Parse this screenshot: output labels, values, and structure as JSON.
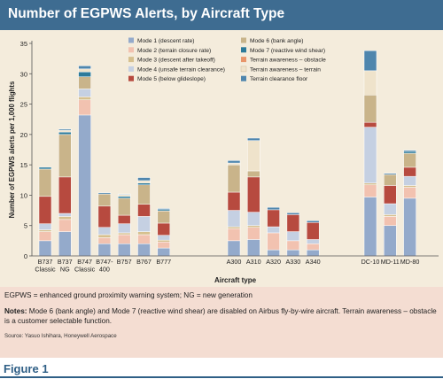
{
  "title": "Number of EGPWS Alerts, by Aircraft Type",
  "chart_data": {
    "type": "bar",
    "stacked": true,
    "title": "Number of EGPWS Alerts, by Aircraft Type",
    "xlabel": "Aircraft type",
    "ylabel": "Number of EGPWS alerts per 1,000 flights",
    "ylim": [
      0,
      35
    ],
    "yticks": [
      0,
      5,
      10,
      15,
      20,
      25,
      30,
      35
    ],
    "grid": false,
    "legend_position": "top-center",
    "groups": [
      [
        "B737 Classic",
        "B737 NG",
        "B747 Classic",
        "B747-400",
        "B757",
        "B767",
        "B777"
      ],
      [
        "A300",
        "A310",
        "A320",
        "A330",
        "A340"
      ],
      [
        "DC-10",
        "MD-11",
        "MD-80"
      ]
    ],
    "categories": [
      "B737 Classic",
      "B737 NG",
      "B747 Classic",
      "B747-400",
      "B757",
      "B767",
      "B777",
      "A300",
      "A310",
      "A320",
      "A330",
      "A340",
      "DC-10",
      "MD-11",
      "MD-80"
    ],
    "category_labels": [
      [
        "B737",
        "Classic"
      ],
      [
        "B737",
        "NG"
      ],
      [
        "B747",
        "Classic"
      ],
      [
        "B747-",
        "400"
      ],
      [
        "B757"
      ],
      [
        "B767"
      ],
      [
        "B777"
      ],
      [
        "A300"
      ],
      [
        "A310"
      ],
      [
        "A320"
      ],
      [
        "A330"
      ],
      [
        "A340"
      ],
      [
        "DC-10"
      ],
      [
        "MD-11"
      ],
      [
        "MD-80"
      ]
    ],
    "series": [
      {
        "name": "Mode 1 (descent rate)",
        "color": "#94aacb",
        "values": [
          2.5,
          4.0,
          23.2,
          2.0,
          2.0,
          2.0,
          1.3,
          2.5,
          2.7,
          1.0,
          1.0,
          1.0,
          9.7,
          5.0,
          9.5
        ]
      },
      {
        "name": "Mode 2 (terrain closure rate)",
        "color": "#f2c2b0",
        "values": [
          1.5,
          2.0,
          2.5,
          1.0,
          1.5,
          1.5,
          1.0,
          2.0,
          2.0,
          2.8,
          1.5,
          1.0,
          2.0,
          1.5,
          1.8
        ]
      },
      {
        "name": "Mode 3 (descent after takeoff)",
        "color": "#d6c08e",
        "values": [
          0.3,
          0.5,
          0.5,
          0.5,
          0.3,
          0.5,
          0.3,
          0.3,
          0.3,
          0.0,
          0.0,
          0.0,
          0.3,
          0.3,
          0.3
        ]
      },
      {
        "name": "Mode 4 (unsafe terrain clearance)",
        "color": "#c5d0e2",
        "values": [
          1.0,
          0.5,
          1.3,
          1.2,
          1.5,
          2.5,
          0.8,
          2.7,
          2.2,
          1.0,
          1.5,
          0.7,
          9.2,
          1.8,
          1.5
        ]
      },
      {
        "name": "Mode 5 (below glideslope)",
        "color": "#b74a3f",
        "values": [
          4.5,
          6.0,
          0.0,
          3.5,
          1.4,
          2.0,
          2.0,
          3.0,
          5.8,
          2.8,
          2.8,
          2.8,
          0.8,
          3.0,
          1.5
        ]
      },
      {
        "name": "Mode 6 (bank angle)",
        "color": "#c9b48a",
        "values": [
          4.5,
          7.0,
          2.0,
          2.0,
          2.8,
          3.2,
          2.0,
          4.5,
          1.0,
          0.0,
          0.0,
          0.0,
          4.5,
          1.8,
          2.3
        ]
      },
      {
        "name": "Mode 7 (reactive wind shear)",
        "color": "#2c7a9a",
        "values": [
          0.3,
          0.4,
          0.8,
          0.0,
          0.3,
          0.3,
          0.2,
          0.0,
          0.0,
          0.0,
          0.0,
          0.0,
          0.0,
          0.0,
          0.3
        ]
      },
      {
        "name": "Terrain awareness – obstacle",
        "color": "#e8956a",
        "values": [
          0.0,
          0.0,
          0.0,
          0.0,
          0.0,
          0.0,
          0.0,
          0.0,
          0.0,
          0.0,
          0.0,
          0.0,
          0.0,
          0.0,
          0.0
        ]
      },
      {
        "name": "Terrain awareness – terrain",
        "color": "#efe3cb",
        "values": [
          0.0,
          0.3,
          0.5,
          0.0,
          0.3,
          0.4,
          0.0,
          0.3,
          5.0,
          0.0,
          0.0,
          0.0,
          4.0,
          0.0,
          0.0
        ]
      },
      {
        "name": "Terrain clearance floor",
        "color": "#4f86ad",
        "values": [
          0.0,
          0.2,
          0.5,
          0.2,
          0.1,
          0.5,
          0.2,
          0.4,
          0.4,
          0.4,
          0.3,
          0.3,
          3.3,
          0.2,
          0.2
        ]
      }
    ]
  },
  "notes": {
    "abbreviations": "EGPWS = enhanced ground proximity warning system; NG = new generation",
    "notes_label": "Notes:",
    "notes_text": "Mode 6 (bank angle) and Mode 7 (reactive wind shear) are disabled on Airbus fly-by-wire aircraft. Terrain awareness – obstacle is a customer selectable function.",
    "source": "Source: Yasuo Ishihara, Honeywell Aerospace"
  },
  "figure_label": "Figure 1"
}
